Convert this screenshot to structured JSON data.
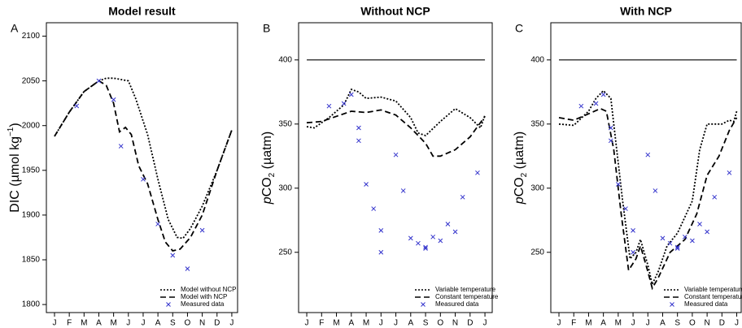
{
  "chart_data": [
    {
      "type": "line",
      "title": "Model result",
      "label": "A",
      "ylabel": [
        "DIC  (µmol kg",
        "−1",
        ")"
      ],
      "ylabel_style": [
        "normal",
        "sup",
        "normal"
      ],
      "xlim": [
        -0.55,
        12.39
      ],
      "ylim": [
        1791,
        2115
      ],
      "xticks": [
        {
          "value": 0,
          "label": "J"
        },
        {
          "value": 1,
          "label": "F"
        },
        {
          "value": 2,
          "label": "M"
        },
        {
          "value": 3,
          "label": "A"
        },
        {
          "value": 4,
          "label": "M"
        },
        {
          "value": 5,
          "label": "J"
        },
        {
          "value": 6,
          "label": "J"
        },
        {
          "value": 7,
          "label": "A"
        },
        {
          "value": 8,
          "label": "S"
        },
        {
          "value": 9,
          "label": "O"
        },
        {
          "value": 10,
          "label": "N"
        },
        {
          "value": 11,
          "label": "D"
        },
        {
          "value": 12,
          "label": "J"
        }
      ],
      "yticks": [
        1800,
        1850,
        1900,
        1950,
        2000,
        2050,
        2100
      ],
      "legend": "lower right",
      "series": [
        {
          "name": "Model without NCP",
          "style": "dotted",
          "color": "#000000",
          "x": [
            0,
            1,
            2,
            3,
            3.5,
            4,
            5,
            5.5,
            6.3,
            7,
            7.7,
            8.3,
            8.7,
            9.2,
            10,
            11,
            12
          ],
          "values": [
            1988,
            2015,
            2038,
            2050,
            2053,
            2053,
            2050,
            2030,
            1990,
            1940,
            1895,
            1875,
            1874,
            1885,
            1910,
            1950,
            1995
          ]
        },
        {
          "name": "Model with NCP",
          "style": "dashed",
          "color": "#000000",
          "x": [
            0,
            1,
            2,
            3,
            3.5,
            4,
            4.4,
            4.8,
            5.2,
            5.7,
            6.3,
            7,
            7.5,
            8,
            8.5,
            9.2,
            10,
            11,
            12
          ],
          "values": [
            1988,
            2015,
            2038,
            2050,
            2045,
            2025,
            1993,
            1998,
            1990,
            1955,
            1935,
            1895,
            1870,
            1860,
            1862,
            1875,
            1900,
            1950,
            1995
          ]
        },
        {
          "name": "Measured data",
          "style": "x",
          "color": "#3333cc",
          "x": [
            1.5,
            3,
            4,
            4.5,
            6,
            7,
            8,
            9,
            10
          ],
          "values": [
            2022,
            2050,
            2029,
            1977,
            1940,
            1890,
            1855,
            1840,
            1883
          ]
        }
      ]
    },
    {
      "type": "line",
      "title": "Without NCP",
      "label": "B",
      "ylabel": [
        "p",
        "CO",
        "2",
        " (µatm)"
      ],
      "ylabel_style": [
        "italic",
        "normal",
        "sub",
        "normal"
      ],
      "xlim": [
        -0.55,
        12.49
      ],
      "ylim": [
        203,
        429
      ],
      "hline": 400,
      "xticks": [
        {
          "value": 0,
          "label": "J"
        },
        {
          "value": 1,
          "label": "F"
        },
        {
          "value": 2,
          "label": "M"
        },
        {
          "value": 3,
          "label": "A"
        },
        {
          "value": 4,
          "label": "M"
        },
        {
          "value": 5,
          "label": "J"
        },
        {
          "value": 6,
          "label": "J"
        },
        {
          "value": 7,
          "label": "A"
        },
        {
          "value": 8,
          "label": "S"
        },
        {
          "value": 9,
          "label": "O"
        },
        {
          "value": 10,
          "label": "N"
        },
        {
          "value": 11,
          "label": "D"
        },
        {
          "value": 12,
          "label": "J"
        }
      ],
      "yticks": [
        250,
        300,
        350,
        400
      ],
      "legend": "lower right",
      "series": [
        {
          "name": "Variable temperature",
          "style": "dotted",
          "color": "#000000",
          "x": [
            0,
            0.5,
            1.5,
            2.5,
            3,
            3.5,
            4,
            5,
            6,
            7,
            7.5,
            8,
            9,
            10,
            11,
            11.7,
            12
          ],
          "values": [
            348,
            347,
            355,
            365,
            377,
            375,
            370,
            371,
            368,
            355,
            343,
            341,
            352,
            362,
            355,
            347,
            357
          ]
        },
        {
          "name": "Constant temperature",
          "style": "dashed",
          "color": "#000000",
          "x": [
            0,
            1,
            2,
            3,
            4,
            5,
            6,
            7,
            8,
            8.5,
            9,
            10,
            11,
            11.5,
            12
          ],
          "values": [
            351,
            352,
            356,
            360,
            359,
            361,
            357,
            347,
            335,
            325,
            325,
            330,
            340,
            348,
            356
          ]
        },
        {
          "name": "Measured data",
          "style": "x",
          "color": "#3333cc",
          "x": [
            1.5,
            2.5,
            3,
            3.5,
            3.5,
            4,
            4.5,
            5,
            5,
            6,
            6.5,
            7,
            7.5,
            8,
            8,
            8.5,
            9,
            9.5,
            10,
            10.5,
            11.5
          ],
          "values": [
            364,
            366,
            373,
            347,
            337,
            303,
            284,
            267,
            250,
            326,
            298,
            261,
            257,
            254,
            253,
            262,
            259,
            272,
            266,
            293,
            312
          ]
        }
      ]
    },
    {
      "type": "line",
      "title": "With NCP",
      "label": "C",
      "ylabel": [
        "p",
        "CO",
        "2",
        " (µatm)"
      ],
      "ylabel_style": [
        "italic",
        "normal",
        "sub",
        "normal"
      ],
      "xlim": [
        -0.55,
        12.3
      ],
      "ylim": [
        203,
        429
      ],
      "hline": 400,
      "xticks": [
        {
          "value": 0,
          "label": "J"
        },
        {
          "value": 1,
          "label": "F"
        },
        {
          "value": 2,
          "label": "M"
        },
        {
          "value": 3,
          "label": "A"
        },
        {
          "value": 4,
          "label": "M"
        },
        {
          "value": 5,
          "label": "J"
        },
        {
          "value": 6,
          "label": "J"
        },
        {
          "value": 7,
          "label": "A"
        },
        {
          "value": 8,
          "label": "S"
        },
        {
          "value": 9,
          "label": "O"
        },
        {
          "value": 10,
          "label": "N"
        },
        {
          "value": 11,
          "label": "D"
        },
        {
          "value": 12,
          "label": "J"
        }
      ],
      "yticks": [
        250,
        300,
        350,
        400
      ],
      "legend": "lower right",
      "series": [
        {
          "name": "Variable temperature",
          "style": "dotted",
          "color": "#000000",
          "x": [
            0,
            1,
            2,
            2.5,
            3,
            3.5,
            3.8,
            4.3,
            4.8,
            5.2,
            5.5,
            6,
            6.3,
            6.7,
            7.3,
            8,
            9,
            9.5,
            10,
            11,
            11.5,
            11.8,
            12
          ],
          "values": [
            350,
            349,
            360,
            370,
            376,
            370,
            340,
            290,
            245,
            250,
            260,
            240,
            225,
            235,
            255,
            265,
            290,
            330,
            350,
            350,
            353,
            352,
            360
          ]
        },
        {
          "name": "Constant temperature",
          "style": "dashed",
          "color": "#000000",
          "x": [
            0,
            1,
            2,
            2.8,
            3.2,
            3.7,
            4.2,
            4.7,
            5.2,
            5.5,
            6,
            6.3,
            6.7,
            7.5,
            8.5,
            9.3,
            10,
            10.8,
            11.5,
            12
          ],
          "values": [
            355,
            353,
            358,
            362,
            360,
            330,
            280,
            236,
            245,
            255,
            235,
            222,
            230,
            250,
            260,
            280,
            310,
            325,
            345,
            355
          ]
        },
        {
          "name": "Measured data",
          "style": "x",
          "color": "#3333cc",
          "x": [
            1.5,
            2.5,
            3,
            3.5,
            3.5,
            4,
            4.5,
            5,
            5,
            6,
            6.5,
            7,
            7.5,
            8,
            8,
            8.5,
            9,
            9.5,
            10,
            10.5,
            11.5
          ],
          "values": [
            364,
            366,
            373,
            347,
            337,
            303,
            284,
            267,
            250,
            326,
            298,
            261,
            257,
            254,
            253,
            262,
            259,
            272,
            266,
            293,
            312
          ]
        }
      ]
    }
  ]
}
